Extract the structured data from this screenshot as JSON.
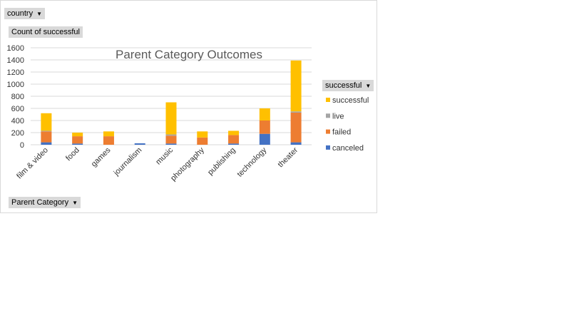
{
  "filters": {
    "country_label": "country",
    "value_label": "Count of successful",
    "legend_label": "successful",
    "axis_label": "Parent Category"
  },
  "icons": {
    "dropdown": "dropdown-arrow-icon"
  },
  "chart_data": {
    "type": "bar",
    "stacked": true,
    "title": "Parent Category Outcomes",
    "categories": [
      "film & video",
      "food",
      "games",
      "journalism",
      "music",
      "photography",
      "publishing",
      "technology",
      "theater"
    ],
    "ylim": [
      0,
      1600
    ],
    "yticks": [
      0,
      200,
      400,
      600,
      800,
      1000,
      1200,
      1400,
      1600
    ],
    "grid": true,
    "legend_position": "right",
    "series": [
      {
        "name": "canceled",
        "color": "#4472c4",
        "values": [
          40,
          20,
          0,
          24,
          20,
          0,
          20,
          180,
          40
        ]
      },
      {
        "name": "failed",
        "color": "#ed7d31",
        "values": [
          180,
          120,
          140,
          0,
          130,
          120,
          140,
          220,
          490
        ]
      },
      {
        "name": "live",
        "color": "#a5a5a5",
        "values": [
          10,
          0,
          0,
          0,
          20,
          0,
          0,
          0,
          20
        ]
      },
      {
        "name": "successful",
        "color": "#ffc000",
        "values": [
          290,
          60,
          80,
          0,
          530,
          100,
          70,
          200,
          840
        ]
      }
    ]
  }
}
